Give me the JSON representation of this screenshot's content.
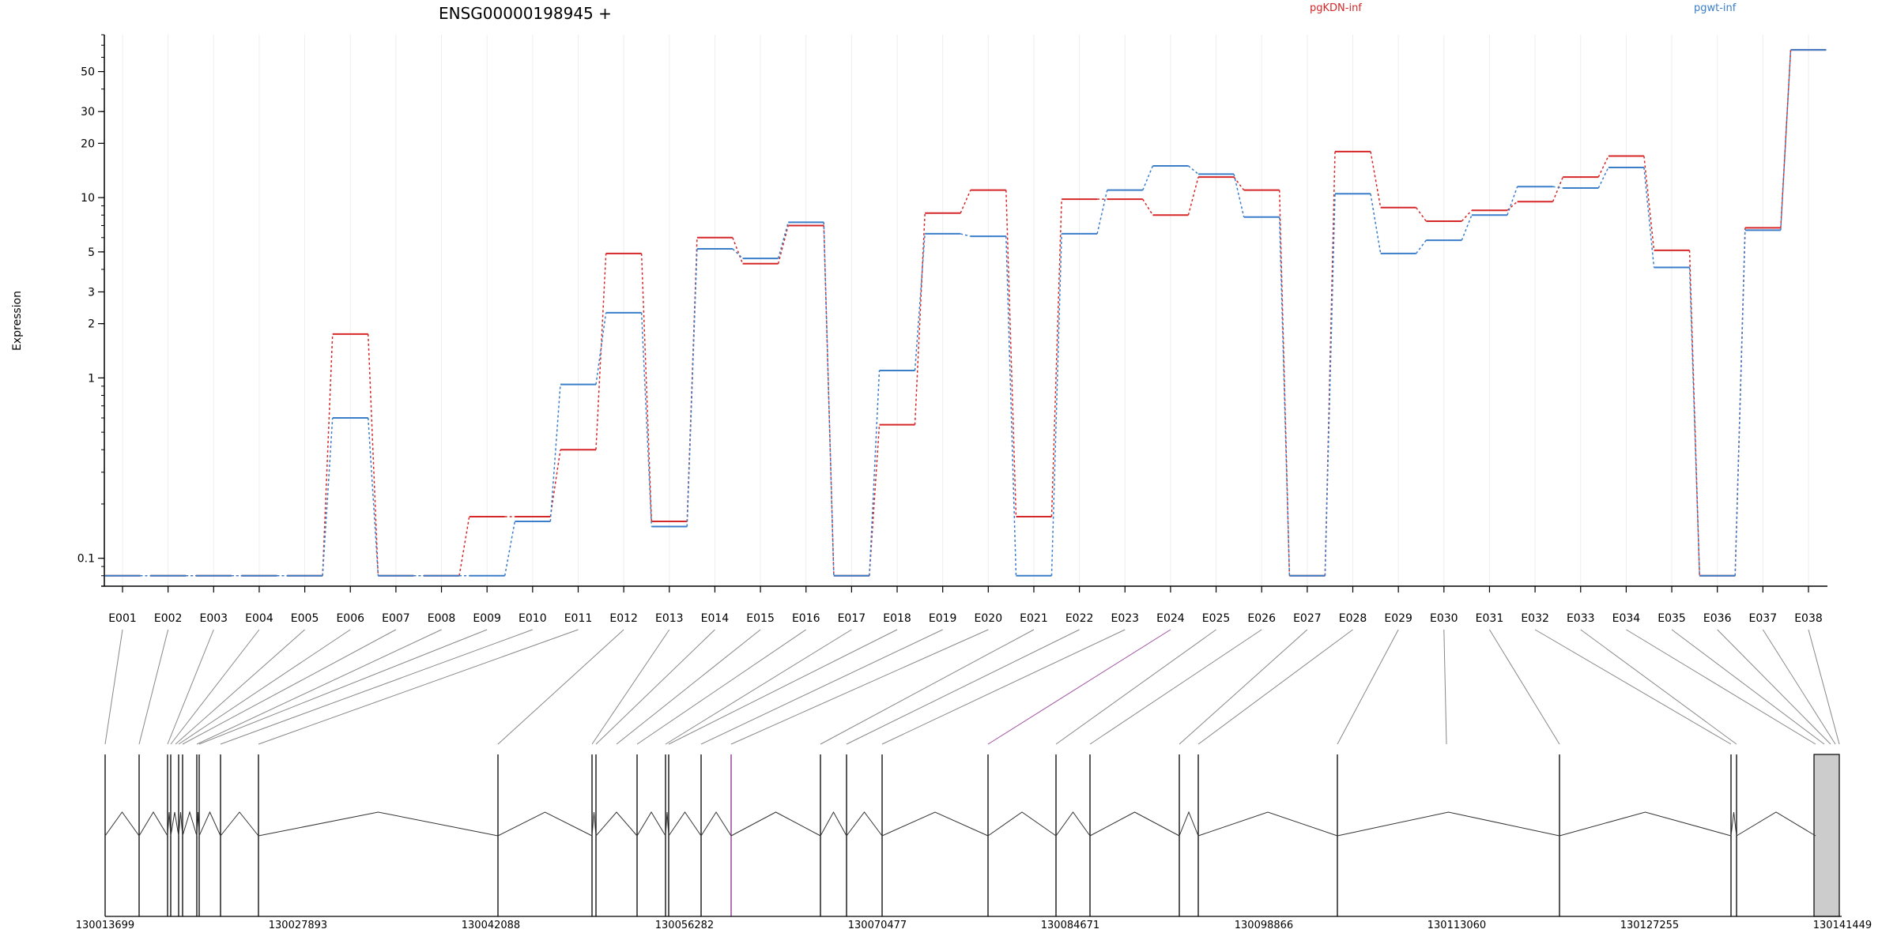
{
  "chart_data": {
    "type": "line",
    "title": "ENSG00000198945 +",
    "ylabel": "Expression",
    "yscale": "log",
    "ylim": [
      0.07,
      80
    ],
    "yticks": [
      0.1,
      1,
      2,
      3,
      5,
      10,
      20,
      30,
      50
    ],
    "ytick_labels": [
      "0.1",
      "1",
      "2",
      "3",
      "5",
      "10",
      "20",
      "30",
      "50"
    ],
    "grid": true,
    "legend_position": "top",
    "categories": [
      "E001",
      "E002",
      "E003",
      "E004",
      "E005",
      "E006",
      "E007",
      "E008",
      "E009",
      "E010",
      "E011",
      "E012",
      "E013",
      "E014",
      "E015",
      "E016",
      "E017",
      "E018",
      "E019",
      "E020",
      "E021",
      "E022",
      "E023",
      "E024",
      "E025",
      "E026",
      "E027",
      "E028",
      "E029",
      "E030",
      "E031",
      "E032",
      "E033",
      "E034",
      "E035",
      "E036",
      "E037",
      "E038"
    ],
    "series": [
      {
        "name": "pgKDN-inf",
        "color": "#d62728",
        "values": [
          0.08,
          0.08,
          0.08,
          0.08,
          0.08,
          1.75,
          0.08,
          0.08,
          0.17,
          0.17,
          0.4,
          4.9,
          0.16,
          6.0,
          4.3,
          7.0,
          0.08,
          0.55,
          8.2,
          11.0,
          0.17,
          9.8,
          9.8,
          8.0,
          13.0,
          11.0,
          0.08,
          18.0,
          8.8,
          7.4,
          8.5,
          9.5,
          13.0,
          17.0,
          5.1,
          0.08,
          6.8,
          66.0
        ]
      },
      {
        "name": "pgwt-inf",
        "color": "#3a7dc9",
        "values": [
          0.08,
          0.08,
          0.08,
          0.08,
          0.08,
          0.6,
          0.08,
          0.08,
          0.08,
          0.16,
          0.92,
          2.3,
          0.15,
          5.2,
          4.6,
          7.3,
          0.08,
          1.1,
          6.3,
          6.1,
          0.08,
          6.3,
          11.0,
          15.0,
          13.5,
          7.8,
          0.08,
          10.5,
          4.9,
          5.8,
          8.0,
          11.5,
          11.3,
          14.7,
          4.1,
          0.08,
          6.6,
          66.0
        ]
      }
    ],
    "genomic_coordinates": [
      "130013699",
      "130027893",
      "130042088",
      "130056282",
      "130070477",
      "130084671",
      "130098866",
      "130113060",
      "130127255",
      "130141449"
    ]
  }
}
